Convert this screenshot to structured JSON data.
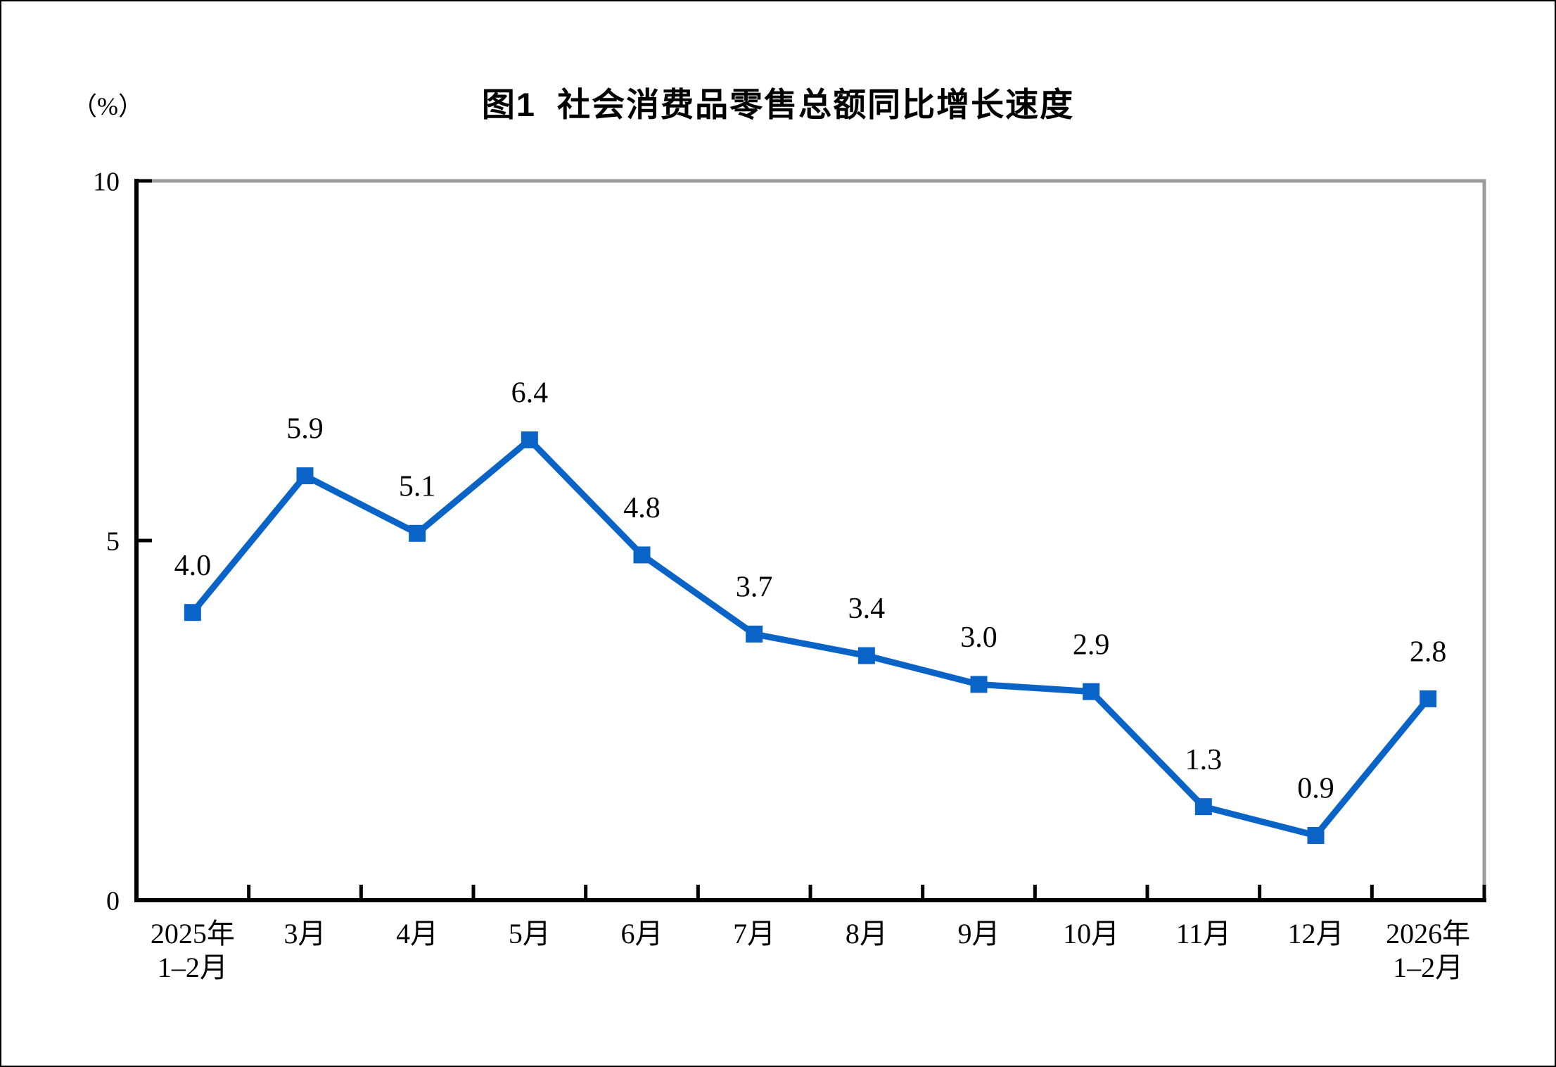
{
  "chart_data": {
    "type": "line",
    "title": "图1  社会消费品零售总额同比增长速度",
    "unit_label": "（%）",
    "categories": [
      [
        "2025年",
        "1–2月"
      ],
      [
        "3月"
      ],
      [
        "4月"
      ],
      [
        "5月"
      ],
      [
        "6月"
      ],
      [
        "7月"
      ],
      [
        "8月"
      ],
      [
        "9月"
      ],
      [
        "10月"
      ],
      [
        "11月"
      ],
      [
        "12月"
      ],
      [
        "2026年",
        "1–2月"
      ]
    ],
    "values": [
      4.0,
      5.9,
      5.1,
      6.4,
      4.8,
      3.7,
      3.4,
      3.0,
      2.9,
      1.3,
      0.9,
      2.8
    ],
    "labels": [
      "4.0",
      "5.9",
      "5.1",
      "6.4",
      "4.8",
      "3.7",
      "3.4",
      "3.0",
      "2.9",
      "1.3",
      "0.9",
      "2.8"
    ],
    "xlabel": "",
    "ylabel": "",
    "ylim": [
      0,
      10
    ],
    "yticks": [
      0,
      5,
      10
    ],
    "grid": false,
    "legend": false,
    "marker": "square",
    "line_color": "#0A63C6",
    "plot_border_color": "#9B9B9B",
    "axis_color": "#000000",
    "text_color": "#000000"
  }
}
